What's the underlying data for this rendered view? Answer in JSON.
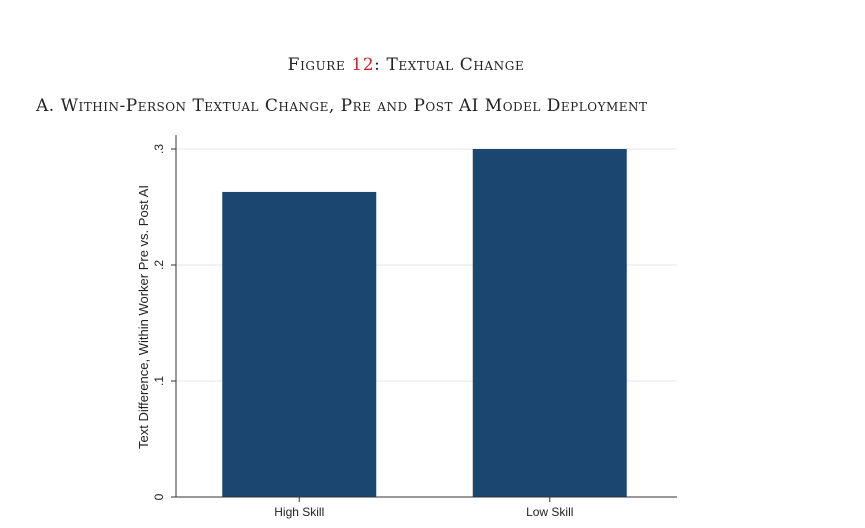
{
  "figure": {
    "prefix": "Figure ",
    "number": "12",
    "suffix": ": Textual Change"
  },
  "panel_title": "A. Within-Person Textual Change, Pre and Post AI Model Deployment",
  "colors": {
    "bar": "#1b4670",
    "figure_number": "#d0232a",
    "grid": "#e6e6e6"
  },
  "chart_data": {
    "type": "bar",
    "categories": [
      "High Skill",
      "Low Skill"
    ],
    "values": [
      0.263,
      0.3
    ],
    "ylabel": "Text Difference, Within Worker Pre vs. Post AI",
    "ylim": [
      0,
      0.3
    ],
    "yticks": [
      0,
      0.1,
      0.2,
      0.3
    ],
    "ytick_labels": [
      "0",
      ".1",
      ".2",
      ".3"
    ],
    "grid": true
  }
}
